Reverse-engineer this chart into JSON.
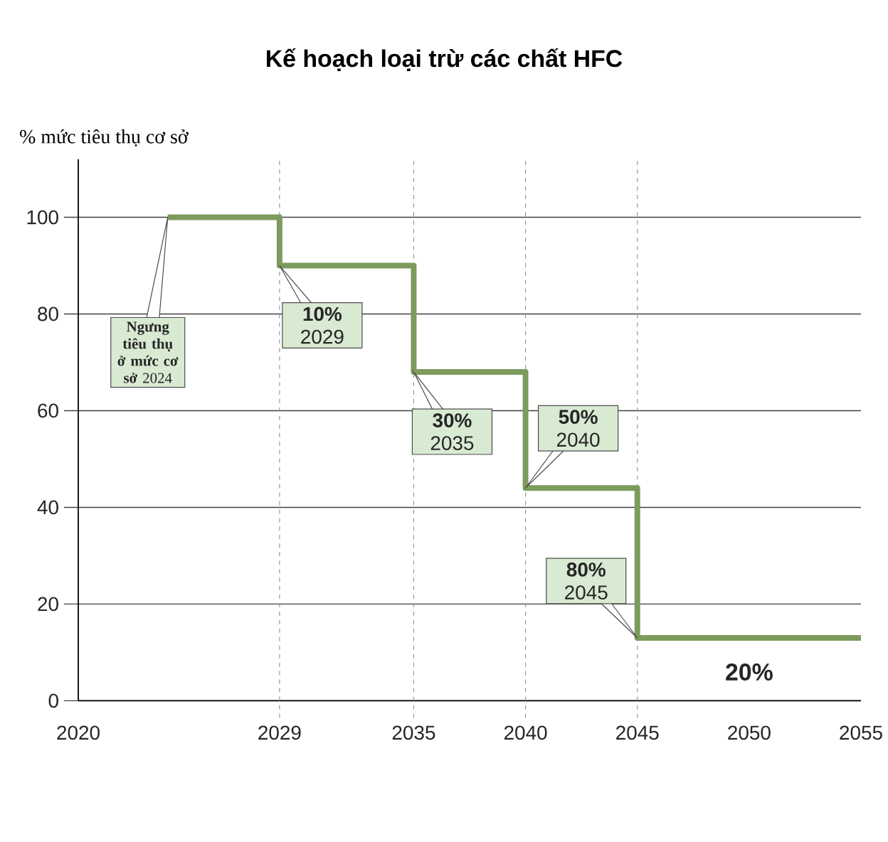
{
  "chart_data": {
    "type": "step",
    "title": "Kế hoạch loại trừ các chất HFC",
    "ylabel": "% mức tiêu thụ cơ sở",
    "x": [
      2024,
      2029,
      2035,
      2040,
      2045,
      2055
    ],
    "values": [
      100,
      90,
      68,
      44,
      13,
      13
    ],
    "color": "#7d9b5c",
    "xlim": [
      2020,
      2055
    ],
    "xticks": [
      2020,
      2029,
      2035,
      2040,
      2045,
      2050,
      2055
    ],
    "ylim": [
      0,
      112
    ],
    "yticks": [
      0,
      20,
      40,
      60,
      80,
      100
    ],
    "grid": "y",
    "ref_lines": [
      {
        "axis": "x",
        "value": 2029,
        "line_style": "dashed",
        "color": "#999999"
      },
      {
        "axis": "x",
        "value": 2035,
        "line_style": "dashed",
        "color": "#999999"
      },
      {
        "axis": "x",
        "value": 2040,
        "line_style": "dashed",
        "color": "#999999"
      },
      {
        "axis": "x",
        "value": 2045,
        "line_style": "dashed",
        "color": "#999999"
      }
    ],
    "annotations": [
      {
        "text": "**Ngưng tiêu thụ ở mức cơ sở** 2024",
        "x": 2024,
        "y": 100
      },
      {
        "text": "**10%** 2029",
        "x": 2029,
        "y": 90
      },
      {
        "text": "**30%** 2035",
        "x": 2035,
        "y": 68
      },
      {
        "text": "**50%** 2040",
        "x": 2040,
        "y": 44
      },
      {
        "text": "**80%** 2045",
        "x": 2045,
        "y": 13
      },
      {
        "text": "**20%**",
        "x": 2050,
        "y": 13
      }
    ]
  }
}
